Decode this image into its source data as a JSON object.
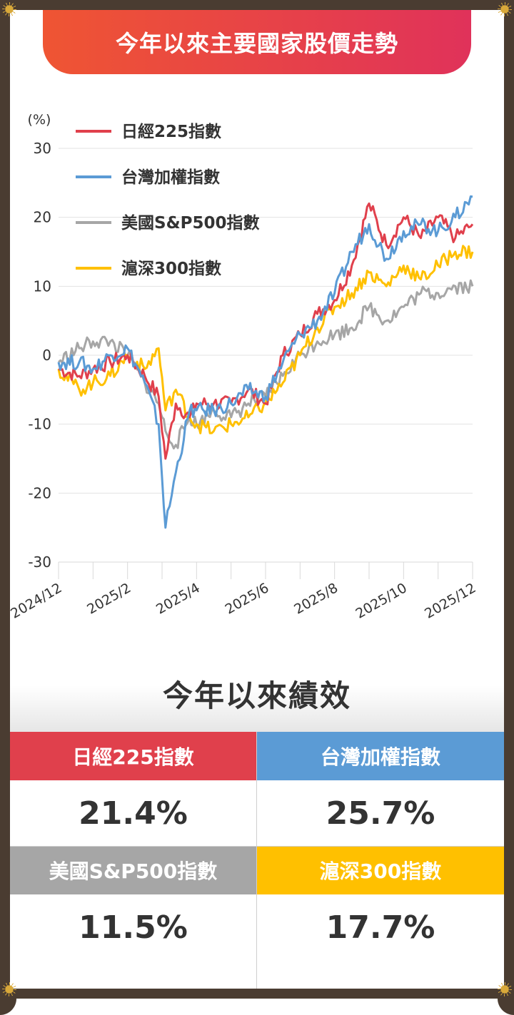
{
  "title": "今年以來主要國家股價走勢",
  "colors": {
    "nikkei": "#e0404c",
    "taiwan": "#5b9bd5",
    "sp500": "#a6a6a6",
    "csi": "#ffc000",
    "title_start": "#ef5533",
    "title_end": "#e0325a"
  },
  "chart_data": {
    "type": "line",
    "ylabel": "(%)",
    "ylim": [
      -30,
      30
    ],
    "yticks": [
      "30",
      "20",
      "10",
      "0",
      "-10",
      "-20",
      "-30"
    ],
    "xlabels": [
      "2024/12",
      "2025/2",
      "2025/4",
      "2025/6",
      "2025/8",
      "2025/10",
      "2025/12"
    ],
    "grid": true,
    "legend": "top-left",
    "x": [
      0,
      0.6,
      1,
      1.5,
      2,
      2.5,
      2.9,
      3.1,
      3.4,
      3.8,
      4,
      4.5,
      5,
      5.5,
      6,
      6.5,
      7,
      7.5,
      8,
      8.5,
      9,
      9.5,
      10,
      10.5,
      11,
      11.5,
      12
    ],
    "series": [
      {
        "name": "日經225指數",
        "color_key": "nikkei",
        "values": [
          -2,
          -3,
          -2,
          -1,
          0,
          -3,
          -6,
          -15,
          -7,
          -9,
          -7,
          -7,
          -7,
          -5,
          -7,
          0,
          3,
          6,
          8,
          13,
          22,
          16,
          20,
          17,
          20,
          17,
          19
        ]
      },
      {
        "name": "台灣加權指數",
        "color_key": "taiwan",
        "values": [
          -1,
          -1,
          -2,
          0,
          1,
          -4,
          -10,
          -25,
          -17,
          -8,
          -8,
          -8,
          -7,
          -5,
          -6,
          -1,
          3,
          5,
          9,
          15,
          19,
          14,
          18,
          19,
          18,
          20,
          23
        ]
      },
      {
        "name": "美國S&P500指數",
        "color_key": "sp500",
        "values": [
          -1,
          1,
          2,
          2,
          0,
          -4,
          -7,
          -11,
          -13,
          -9,
          -10,
          -8,
          -9,
          -7,
          -6,
          -3,
          0,
          2,
          3,
          4,
          7,
          5,
          7,
          9,
          9,
          10,
          10
        ]
      },
      {
        "name": "滬深300指數",
        "color_key": "csi",
        "values": [
          -2,
          -5,
          -4,
          -3,
          0,
          -2,
          1,
          -8,
          -5,
          -9,
          -10,
          -11,
          -10,
          -9,
          -7,
          -4,
          0,
          4,
          7,
          9,
          12,
          10,
          13,
          11,
          13,
          15,
          15
        ]
      }
    ]
  },
  "performance": {
    "title": "今年以來績效",
    "items": [
      {
        "name": "日經225指數",
        "value": "21.4%",
        "color_key": "nikkei"
      },
      {
        "name": "台灣加權指數",
        "value": "25.7%",
        "color_key": "taiwan"
      },
      {
        "name": "美國S&P500指數",
        "value": "11.5%",
        "color_key": "sp500"
      },
      {
        "name": "滬深300指數",
        "value": "17.7%",
        "color_key": "csi"
      }
    ]
  }
}
